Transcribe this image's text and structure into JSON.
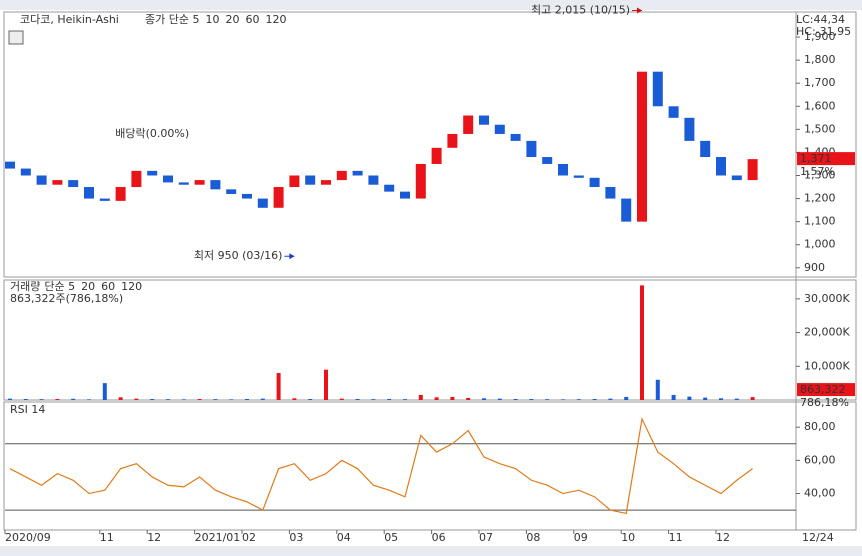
{
  "chart_data": [
    {
      "type": "candlestick",
      "title": "코다코, Heikin-Ashi",
      "legend_items": [
        {
          "label": "종가 단순 5",
          "color": "#a020a0"
        },
        {
          "label": "10",
          "color": "#1a3cc8"
        },
        {
          "label": "20",
          "color": "#c8a000"
        },
        {
          "label": "60",
          "color": "#1a8a1a"
        },
        {
          "label": "120",
          "color": "#888888"
        }
      ],
      "categories": [
        "2020/09",
        null,
        null,
        null,
        null,
        null,
        "11",
        null,
        null,
        "12",
        null,
        null,
        "2021/01",
        null,
        null,
        "02",
        null,
        null,
        "03",
        null,
        null,
        "04",
        null,
        null,
        "05",
        null,
        null,
        "06",
        null,
        null,
        "07",
        null,
        null,
        "08",
        null,
        null,
        "09",
        null,
        null,
        "10",
        null,
        null,
        "11",
        null,
        null,
        "12",
        null,
        null
      ],
      "x_end_label": "12/24",
      "open": [
        1360,
        1330,
        1300,
        1260,
        1280,
        1250,
        1200,
        1190,
        1250,
        1320,
        1300,
        1270,
        1260,
        1280,
        1240,
        1220,
        1200,
        1160,
        1250,
        1300,
        1260,
        1280,
        1320,
        1300,
        1260,
        1230,
        1200,
        1350,
        1420,
        1480,
        1560,
        1520,
        1480,
        1450,
        1380,
        1350,
        1300,
        1290,
        1250,
        1200,
        1100,
        1750,
        1600,
        1550,
        1450,
        1380,
        1300,
        1280
      ],
      "values": [
        1330,
        1300,
        1260,
        1280,
        1250,
        1200,
        1190,
        1250,
        1320,
        1300,
        1270,
        1260,
        1280,
        1240,
        1220,
        1200,
        1160,
        1250,
        1300,
        1260,
        1280,
        1320,
        1300,
        1260,
        1230,
        1200,
        1350,
        1420,
        1480,
        1560,
        1520,
        1480,
        1450,
        1380,
        1350,
        1300,
        1290,
        1250,
        1200,
        1100,
        1750,
        1600,
        1550,
        1450,
        1380,
        1300,
        1280,
        1371
      ],
      "up_color": "#e8141a",
      "down_color": "#1a5bd6",
      "ylim": [
        860,
        2000
      ],
      "yticks": [
        900,
        {
          "value": 1000,
          "label": "1,000"
        },
        {
          "value": 1100,
          "label": "1,100"
        },
        {
          "value": 1200,
          "label": "1,200"
        },
        {
          "value": 1300,
          "label": "1,300"
        },
        {
          "value": 1400,
          "label": "1,400"
        },
        {
          "value": 1500,
          "label": "1,500"
        },
        {
          "value": 1600,
          "label": "1,600"
        },
        {
          "value": 1700,
          "label": "1,700"
        },
        {
          "value": 1800,
          "label": "1,800"
        },
        {
          "value": 1900,
          "label": "1,900"
        }
      ],
      "annotations": [
        {
          "text": "최고 2,015 (10/15)",
          "value": 2015,
          "index": 40,
          "color": "#d01010",
          "side": "left"
        },
        {
          "text": "최저 950 (03/16)",
          "value": 950,
          "index": 18,
          "color": "#1a3cc8",
          "side": "left"
        },
        {
          "text": "배당락(0.00%)",
          "value": 1480,
          "index": 9,
          "color": "#333333",
          "side": "center"
        }
      ],
      "last_value": 1371,
      "last_label": "1,371",
      "last_change": "1.57%",
      "lc": "LC:44,34",
      "hc": "HC:-31,95"
    },
    {
      "type": "bar",
      "title": "거래량",
      "legend_items": [
        {
          "label": "단순 5",
          "color": "#a020a0"
        },
        {
          "label": "20",
          "color": "#c8a000"
        },
        {
          "label": "60",
          "color": "#1a8a1a"
        },
        {
          "label": "120",
          "color": "#888888"
        }
      ],
      "subtitle": "863,322주(786,18%)",
      "values": [
        400,
        300,
        250,
        300,
        350,
        200,
        5000,
        800,
        400,
        300,
        250,
        200,
        300,
        250,
        200,
        300,
        400,
        8000,
        500,
        300,
        9000,
        400,
        300,
        250,
        300,
        250,
        1500,
        800,
        900,
        600,
        500,
        400,
        300,
        300,
        250,
        200,
        250,
        300,
        400,
        900,
        34000,
        6000,
        1500,
        1000,
        700,
        500,
        400,
        863.322
      ],
      "ylim": [
        0,
        35000
      ],
      "yticks": [
        {
          "value": 10000,
          "label": "10,000K"
        },
        {
          "value": 20000,
          "label": "20,000K"
        },
        {
          "value": 30000,
          "label": "30,000K"
        }
      ],
      "last_value": 863.322,
      "last_label": "863,322",
      "last_change": "786,18%"
    },
    {
      "type": "line",
      "title": "RSI 14",
      "color": "#e07b1a",
      "values": [
        55,
        50,
        45,
        52,
        48,
        40,
        42,
        55,
        58,
        50,
        45,
        44,
        50,
        42,
        38,
        35,
        30,
        55,
        58,
        48,
        52,
        60,
        55,
        45,
        42,
        38,
        75,
        65,
        70,
        78,
        62,
        58,
        55,
        48,
        45,
        40,
        42,
        38,
        30,
        28,
        85,
        65,
        58,
        50,
        45,
        40,
        48,
        55
      ],
      "ylim": [
        18,
        94
      ],
      "yticks": [
        {
          "value": 40,
          "label": "40,00"
        },
        {
          "value": 60,
          "label": "60,00"
        },
        {
          "value": 80,
          "label": "80,00"
        }
      ],
      "levels": [
        70,
        30
      ]
    }
  ]
}
